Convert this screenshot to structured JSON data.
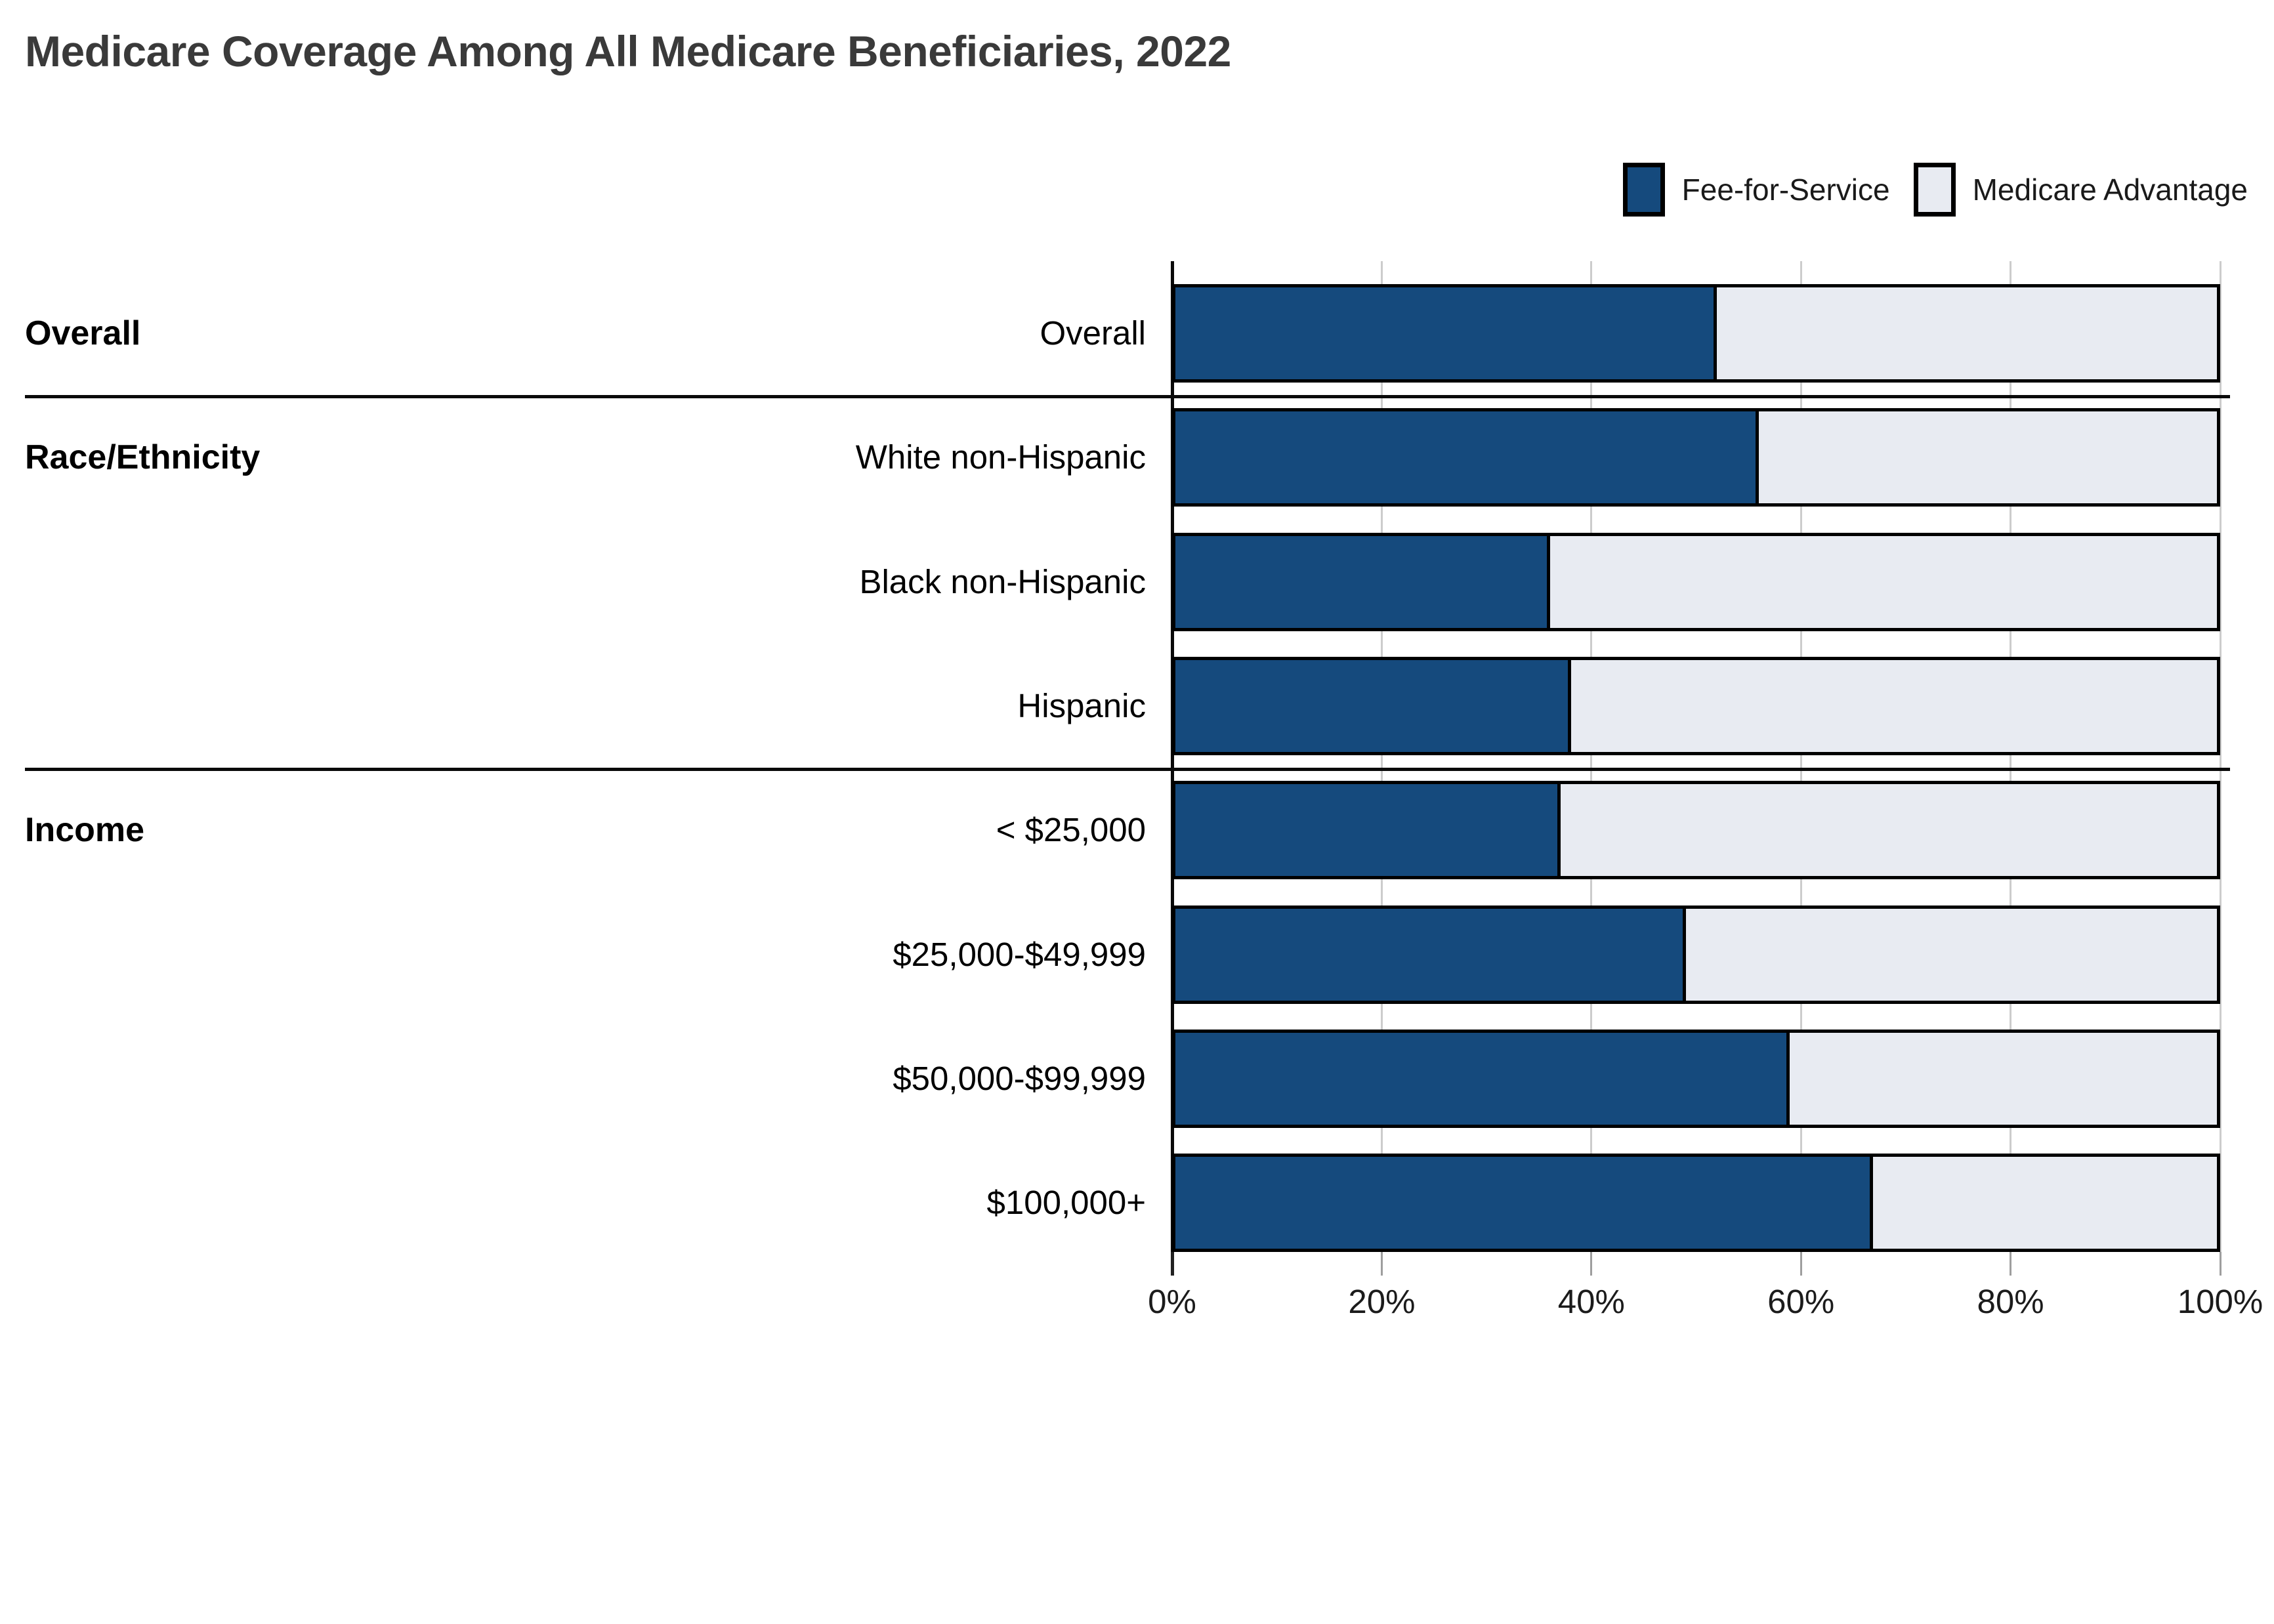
{
  "title": "Medicare Coverage Among All Medicare Beneficiaries, 2022",
  "legend": [
    {
      "label": "Fee-for-Service",
      "color": "#154a7d"
    },
    {
      "label": "Medicare Advantage",
      "color": "#e8ebf2"
    }
  ],
  "chart_data": {
    "type": "bar",
    "orientation": "horizontal",
    "stacked": true,
    "unit": "percent",
    "title": "Medicare Coverage Among All Medicare Beneficiaries, 2022",
    "groups": [
      {
        "label": "Overall",
        "row_indexes": [
          0
        ]
      },
      {
        "label": "Race/Ethnicity",
        "row_indexes": [
          1,
          2,
          3
        ]
      },
      {
        "label": "Income",
        "row_indexes": [
          4,
          5,
          6,
          7
        ]
      }
    ],
    "categories": [
      "Overall",
      "White non-Hispanic",
      "Black non-Hispanic",
      "Hispanic",
      "< $25,000",
      "$25,000-$49,999",
      "$50,000-$99,999",
      "$100,000+"
    ],
    "series": [
      {
        "name": "Fee-for-Service",
        "values": [
          52,
          56,
          36,
          38,
          37,
          49,
          59,
          67
        ]
      },
      {
        "name": "Medicare Advantage",
        "values": [
          48,
          44,
          64,
          62,
          63,
          51,
          41,
          33
        ]
      }
    ],
    "x_axis": {
      "range": [
        0,
        100
      ],
      "tick_values": [
        0,
        20,
        40,
        60,
        80,
        100
      ],
      "tick_labels": [
        "0%",
        "20%",
        "40%",
        "60%",
        "80%",
        "100%"
      ],
      "gridlines": true
    },
    "legend_position": "top-right",
    "colors": {
      "fee_for_service": "#154a7d",
      "medicare_advantage": "#e8ebf2",
      "bar_border": "#000000",
      "gridline": "#cccccc",
      "section_divider": "#0a0a0a"
    }
  }
}
